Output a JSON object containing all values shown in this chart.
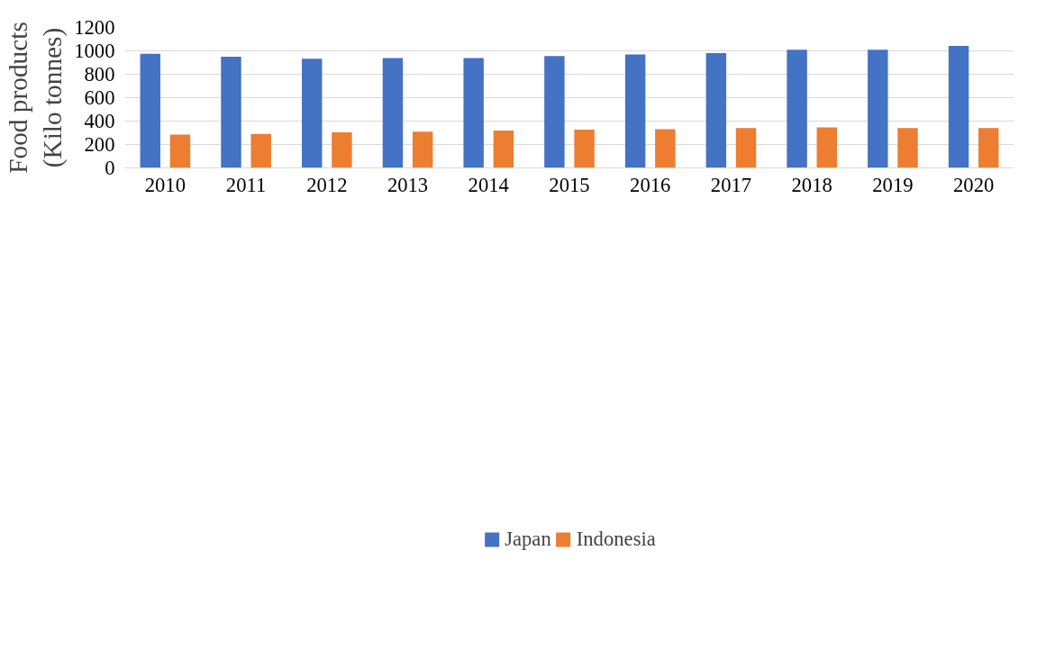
{
  "chart_data": {
    "type": "bar",
    "ylabel": "Food products\n(Kilo tonnes)",
    "categories": [
      "2010",
      "2011",
      "2012",
      "2013",
      "2014",
      "2015",
      "2016",
      "2017",
      "2018",
      "2019",
      "2020"
    ],
    "series": [
      {
        "name": "Japan",
        "color": "#4472c4",
        "values": [
          975,
          950,
          932,
          938,
          938,
          955,
          969,
          981,
          1010,
          1010,
          1043
        ]
      },
      {
        "name": "Indonesia",
        "color": "#ed7d31",
        "values": [
          285,
          291,
          303,
          309,
          320,
          326,
          330,
          340,
          346,
          340,
          340
        ]
      }
    ],
    "ylim": [
      0,
      1200
    ],
    "yticks": [
      0,
      200,
      400,
      600,
      800,
      1000,
      1200
    ],
    "grid": "y",
    "legend": "bottom"
  }
}
